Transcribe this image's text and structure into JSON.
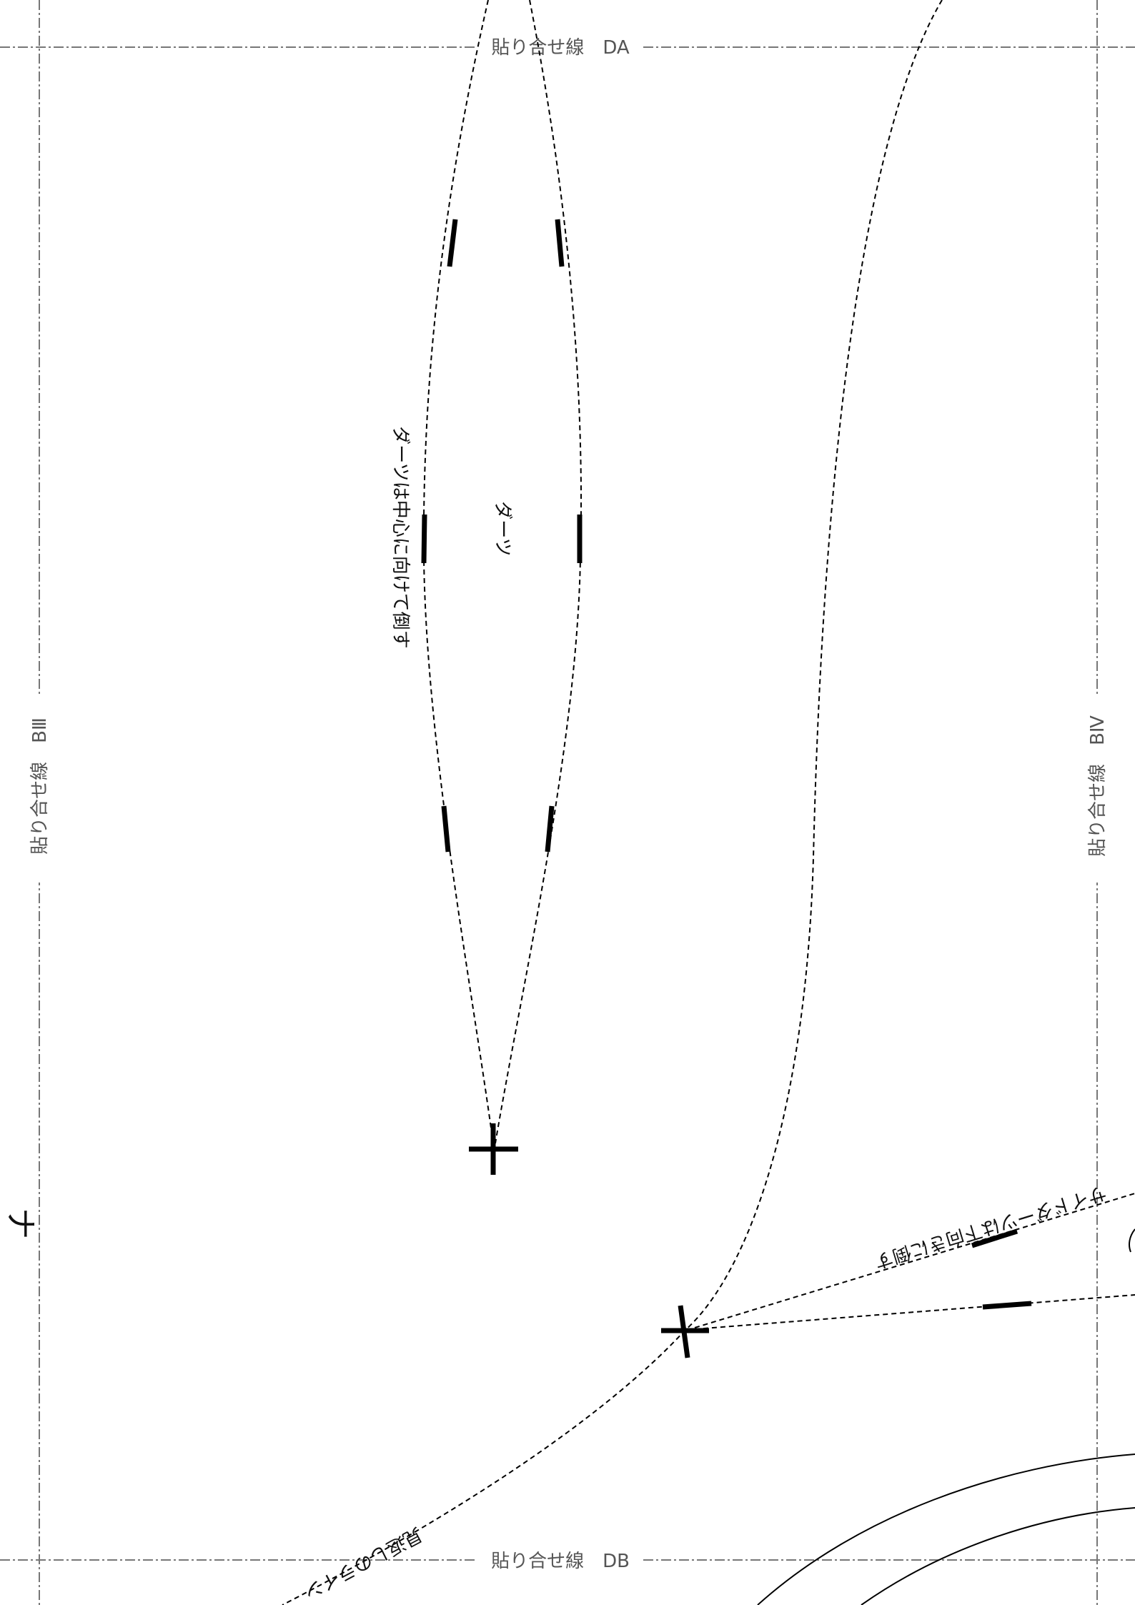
{
  "paste_lines": {
    "top": "貼り合せ線　DA",
    "bottom": "貼り合せ線　DB",
    "left": "貼り合せ線　BⅢ",
    "right": "貼り合せ線　BⅣ"
  },
  "pattern_labels": {
    "dart_instruction": "ダーツは中心に向けて倒す",
    "dart": "ダーツ",
    "side_dart_instruction": "サイドダーツは下向きに倒す",
    "facing_line": "見返しのライン",
    "edge_fragment": "ナ"
  }
}
